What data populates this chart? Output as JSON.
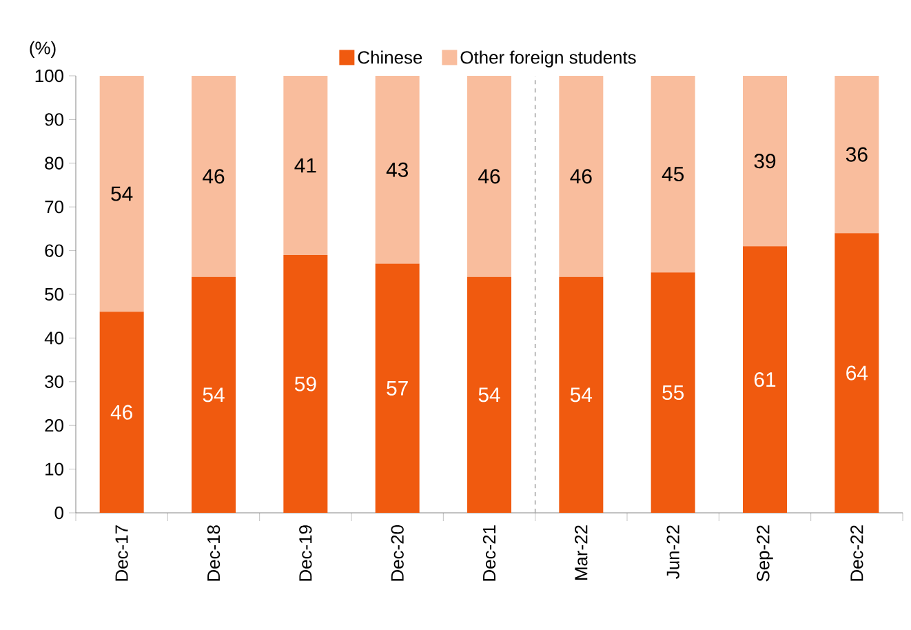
{
  "chart_data": {
    "type": "bar",
    "stacked": true,
    "ylabel": "(%)",
    "categories": [
      "Dec-17",
      "Dec-18",
      "Dec-19",
      "Dec-20",
      "Dec-21",
      "Mar-22",
      "Jun-22",
      "Sep-22",
      "Dec-22"
    ],
    "series": [
      {
        "name": "Chinese",
        "color": "#f05a0f",
        "values": [
          46,
          54,
          59,
          57,
          54,
          54,
          55,
          61,
          64
        ]
      },
      {
        "name": "Other foreign students",
        "color": "#f9bd9d",
        "values": [
          54,
          46,
          41,
          43,
          46,
          46,
          45,
          39,
          36
        ]
      }
    ],
    "ylim": [
      0,
      100
    ],
    "yticks": [
      0,
      10,
      20,
      30,
      40,
      50,
      60,
      70,
      80,
      90,
      100
    ],
    "data_labels": true,
    "legend": "top",
    "grid": false
  }
}
